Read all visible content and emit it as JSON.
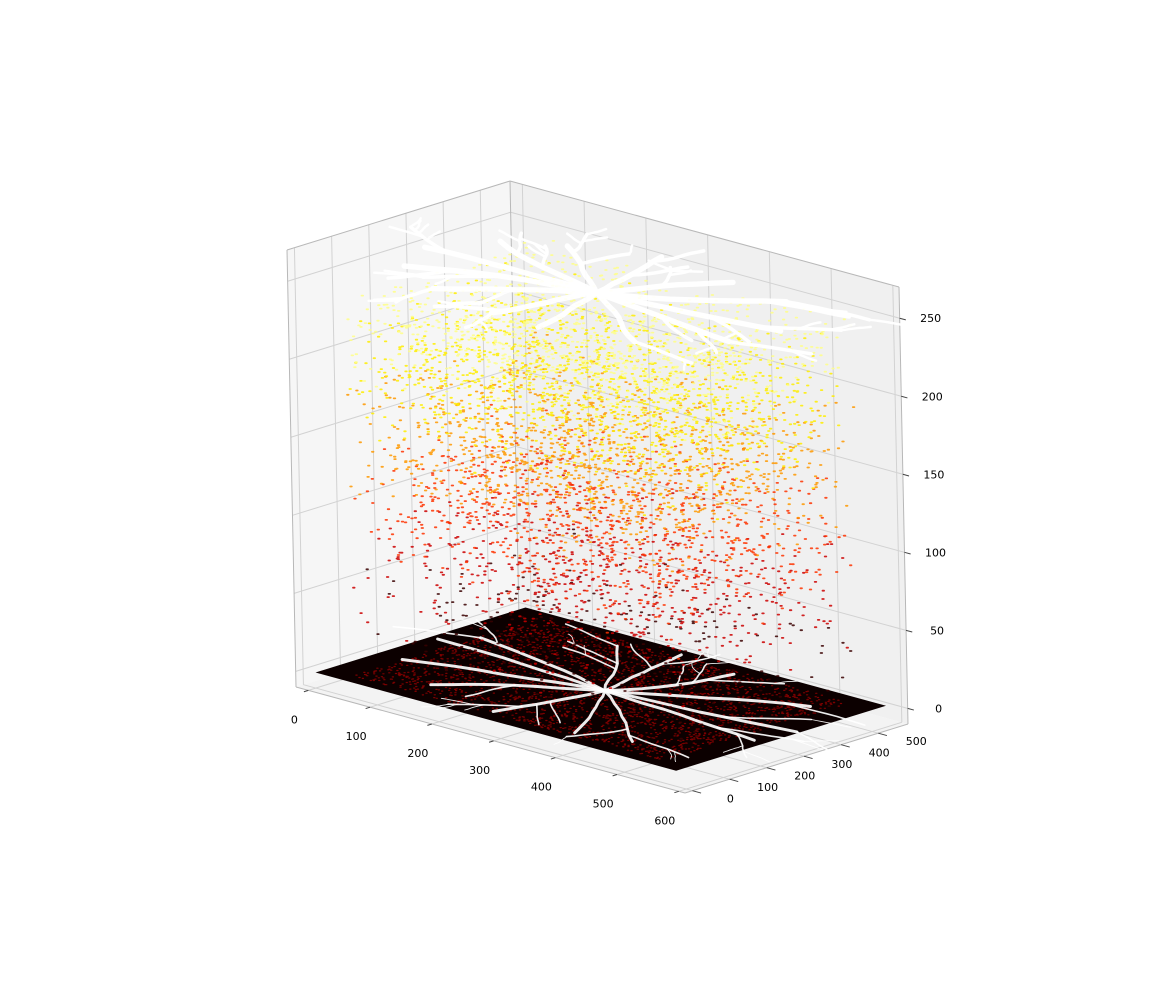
{
  "chart_data": {
    "type": "scatter",
    "projection": "3d",
    "title": "",
    "xlabel": "",
    "ylabel": "",
    "zlabel": "",
    "xlim": [
      -20,
      610
    ],
    "ylim": [
      -20,
      580
    ],
    "zlim": [
      -10,
      270
    ],
    "x_ticks": [
      "0",
      "100",
      "200",
      "300",
      "400",
      "500",
      "600"
    ],
    "y_ticks": [
      "0",
      "100",
      "200",
      "300",
      "400",
      "500"
    ],
    "z_ticks": [
      "0",
      "50",
      "100",
      "150",
      "200",
      "250"
    ],
    "grid": true,
    "legend": "none",
    "colormap": "hot",
    "floor_plane": {
      "z": 0,
      "x_range": [
        0,
        584
      ],
      "y_range": [
        0,
        565
      ],
      "color": "#0c0000",
      "content": "retinal vessel tree rendered as an image on the z=0 plane"
    },
    "vessel_tree": {
      "center": [
        300,
        280
      ],
      "branches": [
        {
          "angle": 95,
          "length": 265
        },
        {
          "angle": 65,
          "length": 250
        },
        {
          "angle": 35,
          "length": 290
        },
        {
          "angle": 10,
          "length": 285
        },
        {
          "angle": -15,
          "length": 270
        },
        {
          "angle": -40,
          "length": 260
        },
        {
          "angle": -70,
          "length": 250
        },
        {
          "angle": -100,
          "length": 240
        },
        {
          "angle": -130,
          "length": 255
        },
        {
          "angle": -160,
          "length": 285
        },
        {
          "angle": 175,
          "length": 290
        },
        {
          "angle": 150,
          "length": 270
        },
        {
          "angle": 125,
          "length": 250
        }
      ]
    },
    "point_cloud": {
      "x_range": [
        40,
        560
      ],
      "y_range": [
        20,
        550
      ],
      "z_range": [
        0,
        255
      ],
      "color_scale": [
        "#3a0000",
        "#cc0000",
        "#ff3300",
        "#ff9900",
        "#ffee00",
        "#ffff88",
        "#ffffff"
      ],
      "note": "intensity-valued pixels scattered in 3D; z equals pixel intensity"
    },
    "top_layer": {
      "z": 255,
      "color": "#ffffff",
      "content": "brightest vessel pixels forming the same tree at z=255"
    }
  }
}
